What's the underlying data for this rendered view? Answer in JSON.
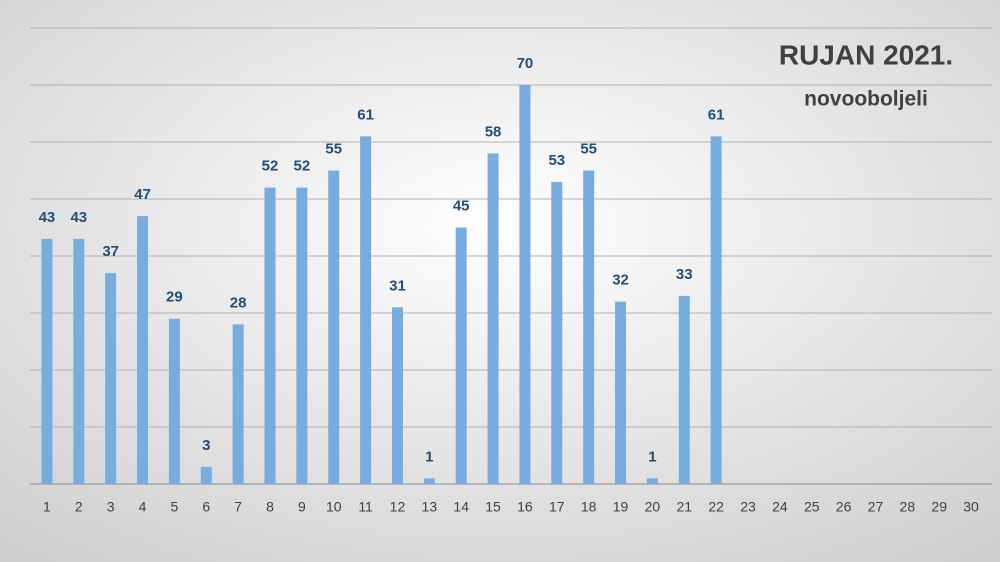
{
  "chart_data": {
    "type": "bar",
    "title": "RUJAN 2021.",
    "subtitle": "novooboljeli",
    "categories": [
      "1",
      "2",
      "3",
      "4",
      "5",
      "6",
      "7",
      "8",
      "9",
      "10",
      "11",
      "12",
      "13",
      "14",
      "15",
      "16",
      "17",
      "18",
      "19",
      "20",
      "21",
      "22",
      "23",
      "24",
      "25",
      "26",
      "27",
      "28",
      "29",
      "30"
    ],
    "values": [
      43,
      43,
      37,
      47,
      29,
      3,
      28,
      52,
      52,
      55,
      61,
      31,
      1,
      45,
      58,
      70,
      53,
      55,
      32,
      1,
      33,
      61,
      null,
      null,
      null,
      null,
      null,
      null,
      null,
      null
    ],
    "color": "#78acdf",
    "ylim": [
      0,
      80
    ],
    "yticks": [
      0,
      10,
      20,
      30,
      40,
      50,
      60,
      70,
      80
    ],
    "grid": true
  }
}
